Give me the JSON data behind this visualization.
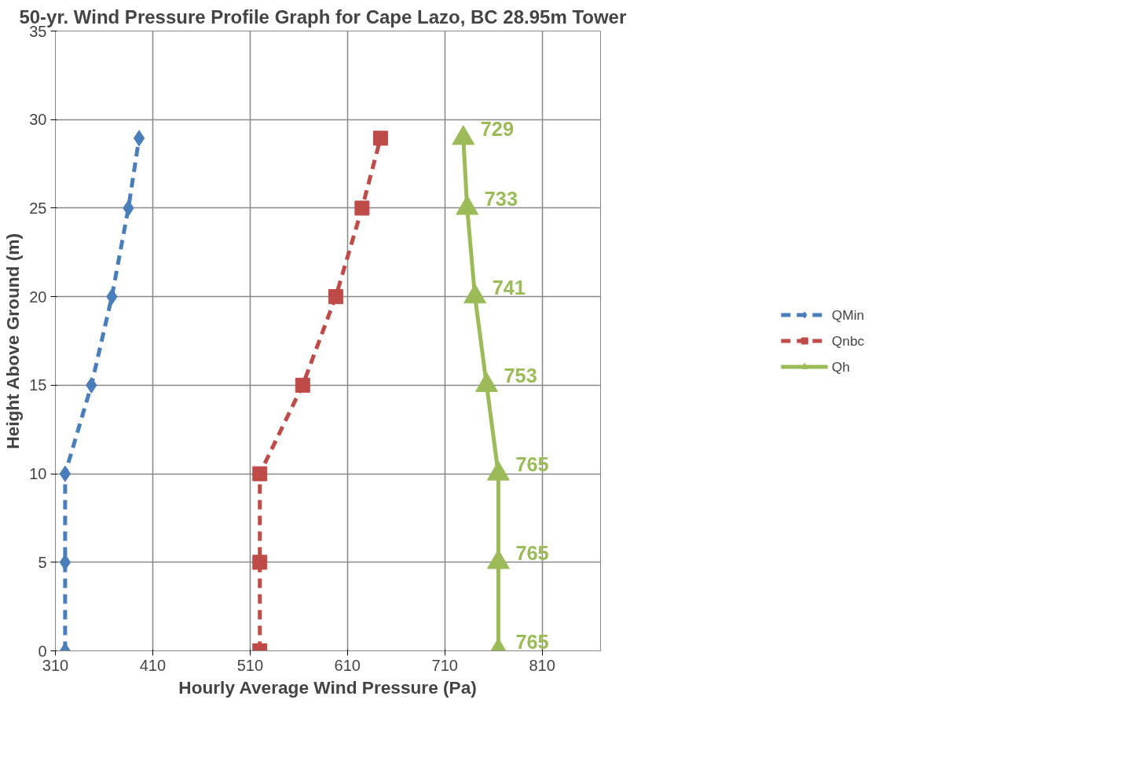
{
  "chart_data": {
    "type": "line",
    "title": "50-yr. Wind Pressure Profile Graph for  Cape Lazo, BC  28.95m Tower",
    "xlabel": "Hourly Average Wind Pressure (Pa)",
    "ylabel": "Height Above Ground (m)",
    "xlim": [
      310,
      870
    ],
    "xticks": [
      310,
      410,
      510,
      610,
      710,
      810
    ],
    "ylim": [
      0,
      35
    ],
    "yticks": [
      0,
      5,
      10,
      15,
      20,
      25,
      30,
      35
    ],
    "grid": true,
    "legend": "right",
    "annotations": [
      {
        "text": "765",
        "x": 765,
        "y": 0
      },
      {
        "text": "765",
        "x": 765,
        "y": 5
      },
      {
        "text": "765",
        "x": 765,
        "y": 10
      },
      {
        "text": "753",
        "x": 753,
        "y": 15
      },
      {
        "text": "741",
        "x": 741,
        "y": 20
      },
      {
        "text": "733",
        "x": 733,
        "y": 25
      },
      {
        "text": "729",
        "x": 729,
        "y": 28.95
      }
    ],
    "series": [
      {
        "name": "QMin",
        "color": "#4a7ebb",
        "marker": "diamond",
        "line_style": "dashed",
        "x": [
          320,
          320,
          320,
          347,
          368,
          385,
          396
        ],
        "values": [
          0,
          5,
          10,
          15,
          20,
          25,
          28.95
        ]
      },
      {
        "name": "Qnbc",
        "color": "#be4b48",
        "marker": "square",
        "line_style": "dashed",
        "x": [
          520,
          520,
          520,
          564,
          598,
          625,
          644
        ],
        "values": [
          0,
          5,
          10,
          15,
          20,
          25,
          28.95
        ]
      },
      {
        "name": "Qh",
        "color": "#9bbb59",
        "marker": "triangle",
        "line_style": "solid",
        "x": [
          765,
          765,
          765,
          753,
          741,
          733,
          729
        ],
        "values": [
          0,
          5,
          10,
          15,
          20,
          25,
          28.95
        ]
      }
    ]
  }
}
